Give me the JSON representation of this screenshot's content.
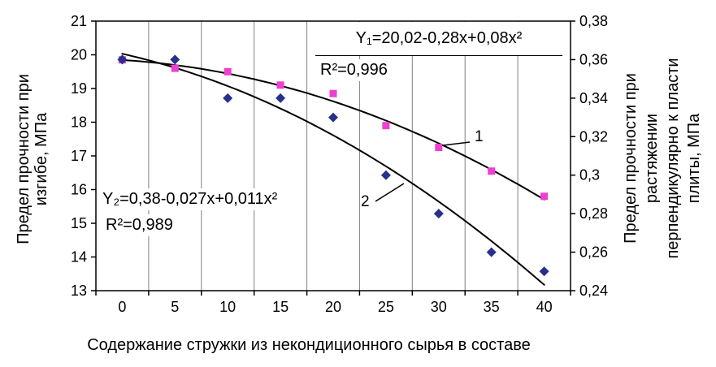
{
  "figure": {
    "background": "#ffffff"
  },
  "chart_data": {
    "type": "line",
    "gridlines": "vertical-only",
    "legend": "none",
    "colors": {
      "grid": "#808080",
      "axis": "#000000",
      "plot_background": "#ffffff"
    },
    "x_axis": {
      "title": "Содержание стружки из некондиционного сырья в составе",
      "values": [
        0,
        5,
        10,
        15,
        20,
        25,
        30,
        35,
        40
      ],
      "tick_labels": [
        "0",
        "5",
        "10",
        "15",
        "20",
        "25",
        "30",
        "35",
        "40"
      ]
    },
    "left_axis": {
      "title": "Предел прочности при\nизгибе, МПа",
      "min": 13,
      "max": 21,
      "step": 1,
      "tick_labels": [
        "21",
        "20",
        "19",
        "18",
        "17",
        "16",
        "15",
        "14",
        "13"
      ]
    },
    "right_axis": {
      "title": "Предел прочности при\nрастяжении\nперпендикулярно к пласти\nплиты, МПа",
      "min": 0.24,
      "max": 0.38,
      "step": 0.02,
      "tick_labels": [
        "0,38",
        "0,36",
        "0,34",
        "0,32",
        "0,3",
        "0,28",
        "0,26",
        "0,24"
      ]
    },
    "series": [
      {
        "name": "1",
        "axis": "left",
        "marker": "square",
        "color": "#ee3fd0",
        "values": [
          19.85,
          19.6,
          19.5,
          19.1,
          18.85,
          17.9,
          17.25,
          16.55,
          15.8
        ],
        "trendline": {
          "color": "#000000",
          "equation": "Y₁=20,02-0,28x+0,08x²",
          "r2": "R²=0,996"
        }
      },
      {
        "name": "2",
        "axis": "right",
        "marker": "diamond",
        "color": "#27308a",
        "values": [
          0.36,
          0.36,
          0.34,
          0.34,
          0.33,
          0.3,
          0.28,
          0.26,
          0.25
        ],
        "trendline": {
          "color": "#000000",
          "equation": "Y₂=0,38-0,027x+0,011x²",
          "r2": "R²=0,989"
        }
      }
    ]
  }
}
